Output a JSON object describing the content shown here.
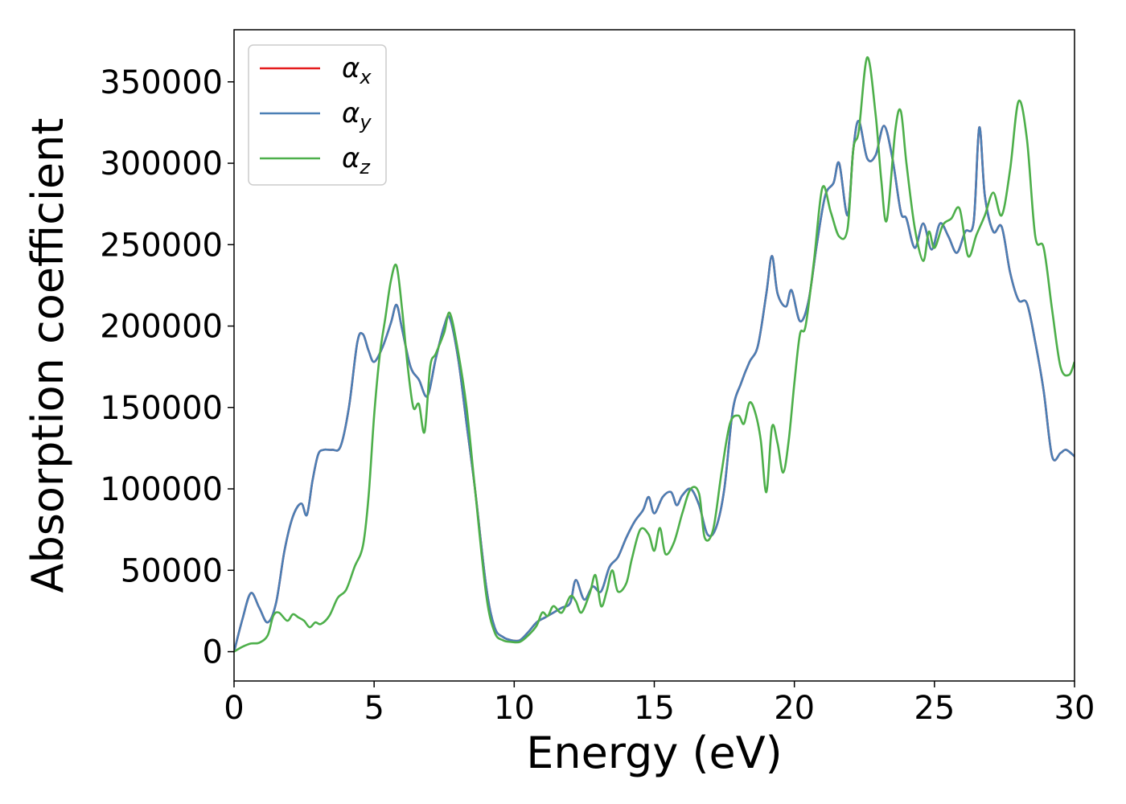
{
  "chart_data": {
    "type": "line",
    "title": "",
    "xlabel": "Energy (eV)",
    "ylabel": "Absorption coefficient",
    "xlim": [
      0,
      30
    ],
    "ylim": [
      -18000,
      382000
    ],
    "xticks": [
      0,
      5,
      10,
      15,
      20,
      25,
      30
    ],
    "yticks": [
      0,
      50000,
      100000,
      150000,
      200000,
      250000,
      300000,
      350000
    ],
    "grid": false,
    "legend_position": "top-left",
    "series": [
      {
        "name": "α",
        "subscript": "x",
        "color": "#e41a1c",
        "x": [
          0,
          0.3,
          0.6,
          0.9,
          1.2,
          1.5,
          1.8,
          2.1,
          2.4,
          2.6,
          2.8,
          3.0,
          3.2,
          3.5,
          3.8,
          4.1,
          4.4,
          4.6,
          4.8,
          5.0,
          5.3,
          5.6,
          5.8,
          6.0,
          6.3,
          6.6,
          6.9,
          7.2,
          7.5,
          7.7,
          8.0,
          8.3,
          8.6,
          9.0,
          9.3,
          9.6,
          9.9,
          10.2,
          10.5,
          10.8,
          11.1,
          11.4,
          11.7,
          12.0,
          12.2,
          12.5,
          12.8,
          13.1,
          13.4,
          13.7,
          14.0,
          14.3,
          14.6,
          14.8,
          15.0,
          15.3,
          15.6,
          15.8,
          16.0,
          16.3,
          16.6,
          16.9,
          17.2,
          17.5,
          17.8,
          18.1,
          18.4,
          18.7,
          19.0,
          19.2,
          19.4,
          19.7,
          19.9,
          20.2,
          20.5,
          20.8,
          21.1,
          21.4,
          21.6,
          21.9,
          22.1,
          22.3,
          22.6,
          22.9,
          23.2,
          23.5,
          23.8,
          24.0,
          24.3,
          24.6,
          24.9,
          25.2,
          25.5,
          25.8,
          26.1,
          26.4,
          26.6,
          26.8,
          27.1,
          27.4,
          27.7,
          28.0,
          28.3,
          28.6,
          28.9,
          29.2,
          29.5,
          29.7,
          30.0
        ],
        "values": [
          0,
          20000,
          36000,
          27000,
          18000,
          30000,
          62000,
          83000,
          91000,
          84000,
          105000,
          121000,
          124000,
          124000,
          126000,
          150000,
          190000,
          195000,
          185000,
          178000,
          187000,
          202000,
          213000,
          198000,
          175000,
          167000,
          157000,
          180000,
          200000,
          205000,
          180000,
          140000,
          100000,
          40000,
          15000,
          9000,
          7000,
          7000,
          12000,
          18000,
          21000,
          24000,
          27000,
          30000,
          44000,
          32000,
          40000,
          37000,
          52000,
          58000,
          70000,
          80000,
          87000,
          95000,
          85000,
          95000,
          98000,
          90000,
          96000,
          100000,
          90000,
          72000,
          76000,
          100000,
          148000,
          165000,
          178000,
          188000,
          220000,
          243000,
          220000,
          212000,
          222000,
          203000,
          215000,
          250000,
          280000,
          288000,
          300000,
          268000,
          308000,
          326000,
          303000,
          305000,
          323000,
          303000,
          270000,
          266000,
          248000,
          263000,
          247000,
          263000,
          255000,
          245000,
          258000,
          264000,
          322000,
          280000,
          258000,
          261000,
          233000,
          216000,
          214000,
          190000,
          160000,
          120000,
          122000,
          124000,
          120000
        ]
      },
      {
        "name": "α",
        "subscript": "y",
        "color": "#4a7fb5",
        "x": [
          0,
          0.3,
          0.6,
          0.9,
          1.2,
          1.5,
          1.8,
          2.1,
          2.4,
          2.6,
          2.8,
          3.0,
          3.2,
          3.5,
          3.8,
          4.1,
          4.4,
          4.6,
          4.8,
          5.0,
          5.3,
          5.6,
          5.8,
          6.0,
          6.3,
          6.6,
          6.9,
          7.2,
          7.5,
          7.7,
          8.0,
          8.3,
          8.6,
          9.0,
          9.3,
          9.6,
          9.9,
          10.2,
          10.5,
          10.8,
          11.1,
          11.4,
          11.7,
          12.0,
          12.2,
          12.5,
          12.8,
          13.1,
          13.4,
          13.7,
          14.0,
          14.3,
          14.6,
          14.8,
          15.0,
          15.3,
          15.6,
          15.8,
          16.0,
          16.3,
          16.6,
          16.9,
          17.2,
          17.5,
          17.8,
          18.1,
          18.4,
          18.7,
          19.0,
          19.2,
          19.4,
          19.7,
          19.9,
          20.2,
          20.5,
          20.8,
          21.1,
          21.4,
          21.6,
          21.9,
          22.1,
          22.3,
          22.6,
          22.9,
          23.2,
          23.5,
          23.8,
          24.0,
          24.3,
          24.6,
          24.9,
          25.2,
          25.5,
          25.8,
          26.1,
          26.4,
          26.6,
          26.8,
          27.1,
          27.4,
          27.7,
          28.0,
          28.3,
          28.6,
          28.9,
          29.2,
          29.5,
          29.7,
          30.0
        ],
        "values": [
          0,
          20000,
          36000,
          27000,
          18000,
          30000,
          62000,
          83000,
          91000,
          84000,
          105000,
          121000,
          124000,
          124000,
          126000,
          150000,
          190000,
          195000,
          185000,
          178000,
          187000,
          202000,
          213000,
          198000,
          175000,
          167000,
          157000,
          180000,
          200000,
          205000,
          180000,
          140000,
          100000,
          40000,
          15000,
          9000,
          7000,
          7000,
          12000,
          18000,
          21000,
          24000,
          27000,
          30000,
          44000,
          32000,
          40000,
          37000,
          52000,
          58000,
          70000,
          80000,
          87000,
          95000,
          85000,
          95000,
          98000,
          90000,
          96000,
          100000,
          90000,
          72000,
          76000,
          100000,
          148000,
          165000,
          178000,
          188000,
          220000,
          243000,
          220000,
          212000,
          222000,
          203000,
          215000,
          250000,
          280000,
          288000,
          300000,
          268000,
          308000,
          326000,
          303000,
          305000,
          323000,
          303000,
          270000,
          266000,
          248000,
          263000,
          247000,
          263000,
          255000,
          245000,
          258000,
          264000,
          322000,
          280000,
          258000,
          261000,
          233000,
          216000,
          214000,
          190000,
          160000,
          120000,
          122000,
          124000,
          120000
        ]
      },
      {
        "name": "α",
        "subscript": "z",
        "color": "#4daf4a",
        "x": [
          0,
          0.3,
          0.6,
          0.9,
          1.2,
          1.4,
          1.6,
          1.9,
          2.1,
          2.3,
          2.5,
          2.7,
          2.9,
          3.1,
          3.4,
          3.7,
          4.0,
          4.3,
          4.6,
          4.8,
          5.0,
          5.2,
          5.4,
          5.6,
          5.8,
          6.0,
          6.2,
          6.4,
          6.6,
          6.8,
          7.0,
          7.2,
          7.5,
          7.7,
          8.0,
          8.3,
          8.6,
          9.0,
          9.3,
          9.6,
          9.9,
          10.2,
          10.5,
          10.8,
          11.0,
          11.2,
          11.4,
          11.7,
          12.0,
          12.2,
          12.4,
          12.7,
          12.9,
          13.1,
          13.3,
          13.5,
          13.7,
          14.0,
          14.2,
          14.5,
          14.8,
          15.0,
          15.2,
          15.4,
          15.7,
          16.0,
          16.3,
          16.6,
          16.8,
          17.1,
          17.4,
          17.7,
          18.0,
          18.2,
          18.4,
          18.6,
          18.8,
          19.0,
          19.2,
          19.4,
          19.6,
          19.8,
          20.0,
          20.2,
          20.4,
          20.7,
          21.0,
          21.3,
          21.6,
          21.9,
          22.1,
          22.3,
          22.6,
          22.9,
          23.1,
          23.3,
          23.6,
          23.8,
          24.0,
          24.3,
          24.6,
          24.8,
          25.0,
          25.3,
          25.6,
          25.9,
          26.2,
          26.5,
          26.8,
          27.1,
          27.4,
          27.7,
          28.0,
          28.3,
          28.6,
          28.9,
          29.2,
          29.5,
          29.8,
          30.0
        ],
        "values": [
          0,
          3000,
          5000,
          5500,
          10000,
          22000,
          24000,
          19000,
          23000,
          21000,
          19000,
          15000,
          18000,
          17000,
          22000,
          33000,
          38000,
          52000,
          65000,
          95000,
          145000,
          182000,
          205000,
          228000,
          237000,
          210000,
          175000,
          150000,
          152000,
          135000,
          175000,
          183000,
          196000,
          208000,
          184000,
          150000,
          100000,
          35000,
          12000,
          7000,
          6000,
          6000,
          10000,
          16000,
          24000,
          22000,
          28000,
          24000,
          34000,
          31000,
          24000,
          36000,
          47000,
          28000,
          37000,
          50000,
          37000,
          42000,
          57000,
          75000,
          72000,
          62000,
          76000,
          60000,
          67000,
          85000,
          100000,
          97000,
          70000,
          75000,
          110000,
          140000,
          145000,
          140000,
          153000,
          147000,
          130000,
          98000,
          138000,
          128000,
          110000,
          130000,
          165000,
          195000,
          200000,
          240000,
          285000,
          270000,
          255000,
          260000,
          308000,
          320000,
          365000,
          330000,
          290000,
          265000,
          320000,
          332000,
          300000,
          260000,
          240000,
          258000,
          248000,
          262000,
          266000,
          272000,
          243000,
          256000,
          268000,
          282000,
          268000,
          296000,
          338000,
          315000,
          255000,
          248000,
          210000,
          175000,
          170000,
          178000
        ]
      }
    ]
  }
}
